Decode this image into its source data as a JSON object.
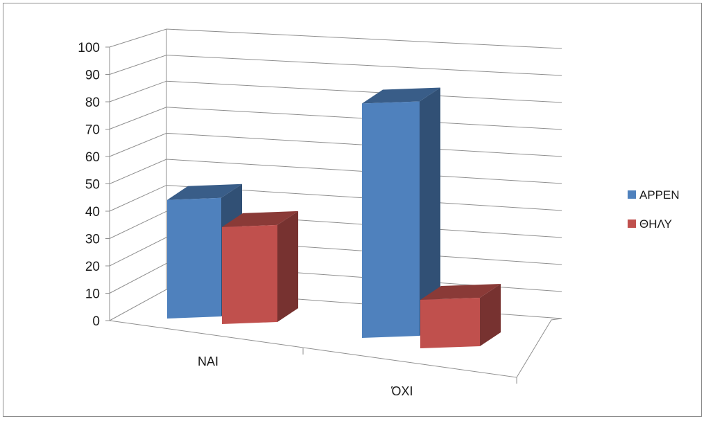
{
  "chart_data": {
    "type": "bar",
    "style": "3d-clustered-column",
    "categories": [
      "ΝΑΙ",
      "ΌΧΙ"
    ],
    "series": [
      {
        "name": "ΑΡΡΕΝ",
        "values": [
          44,
          87
        ],
        "color": "#4f81bd"
      },
      {
        "name": "ΘΗΛΥ",
        "values": [
          36,
          18
        ],
        "color": "#c0504d"
      }
    ],
    "ylim": [
      0,
      100
    ],
    "yticks": [
      0,
      10,
      20,
      30,
      40,
      50,
      60,
      70,
      80,
      90,
      100
    ],
    "grid": true,
    "legend_position": "right"
  }
}
